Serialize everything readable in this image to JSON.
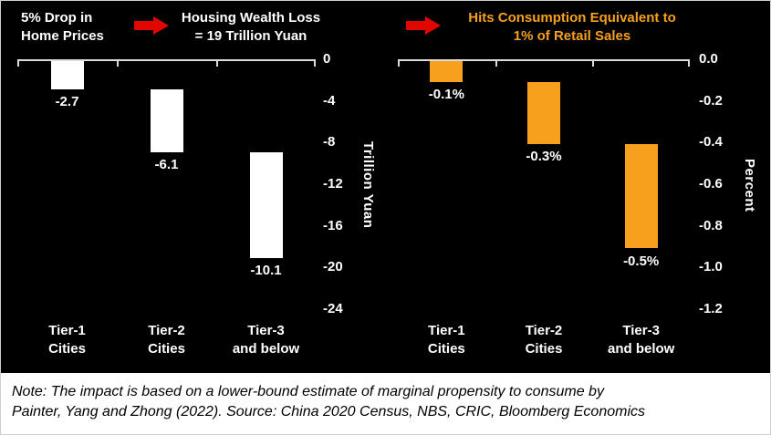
{
  "panels": [
    {
      "lead_label": "5% Drop in\nHome Prices",
      "title": "Housing Wealth Loss\n= 19 Trillion Yuan",
      "title_color": "#ffffff"
    },
    {
      "title": "Hits Consumption Equivalent to\n1% of Retail Sales",
      "title_color": "#f7a01e"
    }
  ],
  "arrow_color": "#e10600",
  "chart_data": [
    {
      "type": "bar",
      "variant": "waterfall",
      "title": "Housing Wealth Loss = 19 Trillion Yuan",
      "categories": [
        "Tier-1 Cities",
        "Tier-2 Cities",
        "Tier-3 and below"
      ],
      "category_lines": [
        [
          "Tier-1",
          "Cities"
        ],
        [
          "Tier-2",
          "Cities"
        ],
        [
          "Tier-3",
          "and below"
        ]
      ],
      "values": [
        -2.7,
        -6.1,
        -10.1
      ],
      "bar_labels": [
        "-2.7",
        "-6.1",
        "-10.1"
      ],
      "cumulative_end": [
        -2.7,
        -8.8,
        -18.9
      ],
      "xlabel": "",
      "ylabel": "Trillion Yuan",
      "ylim": [
        0,
        -24
      ],
      "yticks": [
        "0",
        "-4",
        "-8",
        "-12",
        "-16",
        "-20",
        "-24"
      ],
      "bar_color": "#ffffff",
      "grid": false,
      "legend": "none"
    },
    {
      "type": "bar",
      "variant": "waterfall",
      "title": "Hits Consumption Equivalent to 1% of Retail Sales",
      "categories": [
        "Tier-1 Cities",
        "Tier-2 Cities",
        "Tier-3 and below"
      ],
      "category_lines": [
        [
          "Tier-1",
          "Cities"
        ],
        [
          "Tier-2",
          "Cities"
        ],
        [
          "Tier-3",
          "and below"
        ]
      ],
      "values": [
        -0.1,
        -0.3,
        -0.5
      ],
      "bar_labels": [
        "-0.1%",
        "-0.3%",
        "-0.5%"
      ],
      "cumulative_end": [
        -0.1,
        -0.4,
        -0.9
      ],
      "xlabel": "",
      "ylabel": "Percent",
      "ylim": [
        0,
        -1.2
      ],
      "yticks": [
        "0.0",
        "-0.2",
        "-0.4",
        "-0.6",
        "-0.8",
        "-1.0",
        "-1.2"
      ],
      "bar_color": "#f7a01e",
      "grid": false,
      "legend": "none"
    }
  ],
  "note": {
    "line1": "Note: The impact is based on a lower-bound estimate of marginal propensity to consume by",
    "line2": "Painter, Yang and Zhong (2022). Source: China 2020 Census, NBS, CRIC, Bloomberg Economics"
  }
}
